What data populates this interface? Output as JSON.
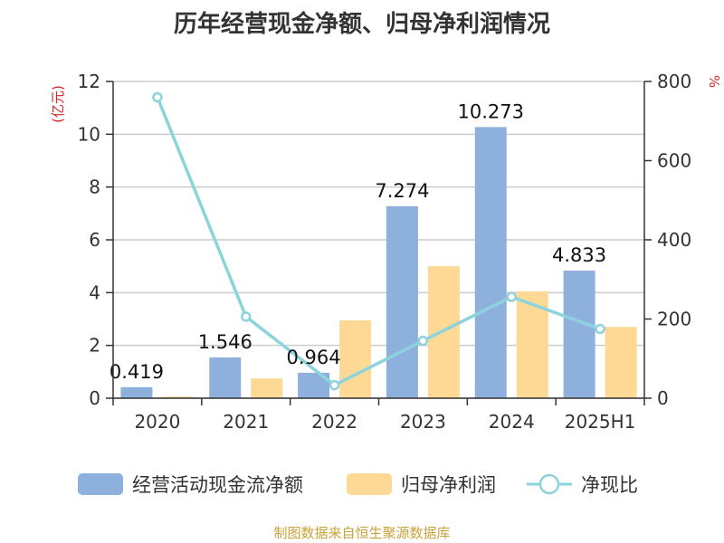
{
  "title": "历年经营现金净额、归母净利润情况",
  "footer": "制图数据来自恒生聚源数据库",
  "chart_data": {
    "type": "bar",
    "categories": [
      "2020",
      "2021",
      "2022",
      "2023",
      "2024",
      "2025H1"
    ],
    "y_left": {
      "label": "(亿元)",
      "range": [
        0,
        12
      ],
      "ticks": [
        0,
        2,
        4,
        6,
        8,
        10,
        12
      ]
    },
    "y_right": {
      "label": "%",
      "range": [
        0,
        800
      ],
      "ticks": [
        0,
        200,
        400,
        600,
        800
      ]
    },
    "grid": true,
    "legend_position": "bottom",
    "series": [
      {
        "name": "经营活动现金流净额",
        "type": "bar",
        "axis": "left",
        "color": "#8eb0dc",
        "values": [
          0.419,
          1.546,
          0.964,
          7.274,
          10.273,
          4.833
        ],
        "labels": [
          "0.419",
          "1.546",
          "0.964",
          "7.274",
          "10.273",
          "4.833"
        ]
      },
      {
        "name": "归母净利润",
        "type": "bar",
        "axis": "left",
        "color": "#fdd995",
        "values": [
          0.06,
          0.75,
          2.95,
          5.0,
          4.05,
          2.7
        ]
      },
      {
        "name": "净现比",
        "type": "line",
        "axis": "right",
        "color": "#8dd3dc",
        "values": [
          760,
          206,
          33,
          145,
          256,
          175
        ]
      }
    ]
  }
}
